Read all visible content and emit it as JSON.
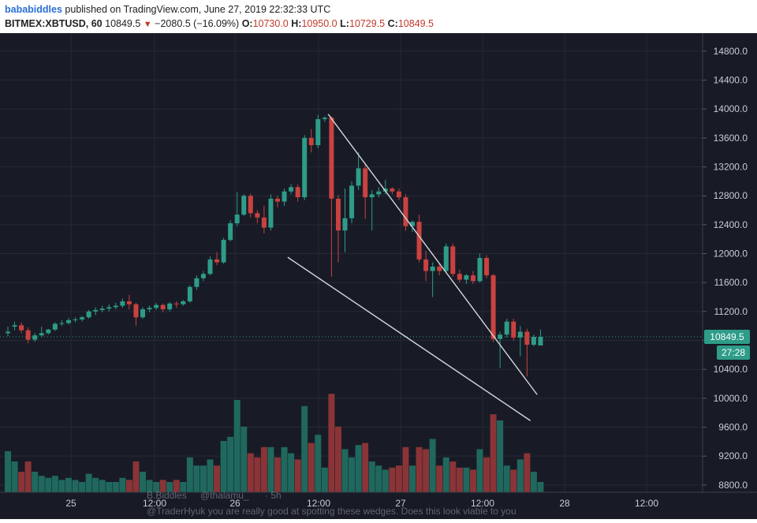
{
  "header": {
    "user": "bababiddles",
    "published": "published on TradingView.com, June 27, 2019 22:32:33 UTC",
    "symbol": "BITMEX:XBTUSD, 60",
    "last": "10849.5",
    "change": "−2080.5 (−16.09%)",
    "o_label": "O:",
    "o_value": "10730.0",
    "h_label": "H:",
    "h_value": "10950.0",
    "l_label": "L:",
    "l_value": "10729.5",
    "c_label": "C:",
    "c_value": "10849.5"
  },
  "colors": {
    "background": "#181b26",
    "up": "#2e9c88",
    "down": "#c9423f",
    "vol_up": "#20685e",
    "vol_down": "#8a3437",
    "grid": "#252a36",
    "axis_text": "#c8ccd6",
    "price_tag": "#2e9c88",
    "trendline": "#d4d6dc"
  },
  "price_tag": {
    "price": "10849.5",
    "countdown": "27:28"
  },
  "overlay_comment": {
    "author": "B.Biddles",
    "handle": "@thalamu_",
    "age": "· 5h",
    "text": "@TraderHyuk you are really good at spotting these wedges. Does this look viable to you"
  },
  "chart_data": {
    "type": "candlestick",
    "symbol": "BITMEX:XBTUSD",
    "interval": "60",
    "x_ticks": [
      "25",
      "12:00",
      "26",
      "12:00",
      "27",
      "12:00",
      "28",
      "12:00"
    ],
    "y_ticks": [
      8800,
      9200,
      9600,
      10000,
      10400,
      10800,
      11200,
      11600,
      12000,
      12400,
      12800,
      13200,
      13600,
      14000,
      14400,
      14800
    ],
    "ylim": [
      8700,
      15050
    ],
    "last_price": 10849.5,
    "candles": [
      [
        10900,
        10990,
        10920,
        10860,
        2
      ],
      [
        10990,
        11060,
        11010,
        10940,
        1.5
      ],
      [
        11010,
        11050,
        10940,
        10900,
        1
      ],
      [
        10940,
        10980,
        10810,
        10760,
        1.5
      ],
      [
        10810,
        10900,
        10870,
        10780,
        1
      ],
      [
        10870,
        10990,
        10900,
        10840,
        0.8
      ],
      [
        10900,
        10960,
        10950,
        10880,
        0.7
      ],
      [
        10950,
        11050,
        11030,
        10930,
        0.8
      ],
      [
        11030,
        11080,
        11040,
        11000,
        0.6
      ],
      [
        11040,
        11110,
        11080,
        11020,
        0.7
      ],
      [
        11080,
        11120,
        11090,
        11050,
        0.6
      ],
      [
        11090,
        11140,
        11120,
        11060,
        0.5
      ],
      [
        11120,
        11220,
        11200,
        11100,
        0.9
      ],
      [
        11200,
        11260,
        11220,
        11150,
        0.7
      ],
      [
        11220,
        11280,
        11240,
        11190,
        0.6
      ],
      [
        11240,
        11300,
        11260,
        11200,
        0.5
      ],
      [
        11260,
        11320,
        11280,
        11230,
        0.5
      ],
      [
        11280,
        11380,
        11340,
        11250,
        0.7
      ],
      [
        11340,
        11430,
        11300,
        11230,
        0.6
      ],
      [
        11300,
        11320,
        11120,
        11000,
        1.5
      ],
      [
        11120,
        11260,
        11230,
        11100,
        1
      ],
      [
        11230,
        11280,
        11250,
        11190,
        0.6
      ],
      [
        11250,
        11320,
        11290,
        11220,
        0.5
      ],
      [
        11290,
        11310,
        11230,
        11190,
        0.6
      ],
      [
        11230,
        11330,
        11310,
        11200,
        0.5
      ],
      [
        11310,
        11340,
        11300,
        11250,
        0.6
      ],
      [
        11300,
        11360,
        11340,
        11280,
        0.5
      ],
      [
        11340,
        11560,
        11540,
        11320,
        1.7
      ],
      [
        11540,
        11700,
        11660,
        11500,
        1.3
      ],
      [
        11660,
        11760,
        11720,
        11620,
        1.3
      ],
      [
        11720,
        11960,
        11920,
        11700,
        1.6
      ],
      [
        11920,
        12020,
        11880,
        11840,
        1.3
      ],
      [
        11880,
        12220,
        12190,
        11860,
        2.5
      ],
      [
        12190,
        12460,
        12420,
        12170,
        2.7
      ],
      [
        12420,
        12850,
        12540,
        12380,
        4.5
      ],
      [
        12540,
        12820,
        12800,
        12520,
        3.2
      ],
      [
        12800,
        12830,
        12560,
        12500,
        1.9
      ],
      [
        12560,
        12600,
        12500,
        12420,
        1.7
      ],
      [
        12500,
        12660,
        12360,
        12280,
        2.2
      ],
      [
        12360,
        12820,
        12760,
        12320,
        2.2
      ],
      [
        12760,
        12800,
        12720,
        12640,
        1.7
      ],
      [
        12720,
        12900,
        12860,
        12660,
        2.2
      ],
      [
        12860,
        12960,
        12920,
        12820,
        1.9
      ],
      [
        12920,
        12960,
        12780,
        12720,
        1.6
      ],
      [
        12780,
        13640,
        13600,
        12740,
        4.2
      ],
      [
        13600,
        13720,
        13500,
        13400,
        2.4
      ],
      [
        13500,
        13920,
        13860,
        13460,
        2.8
      ],
      [
        13860,
        13900,
        13880,
        13820,
        1.2
      ],
      [
        13880,
        13900,
        12760,
        11680,
        4.8
      ],
      [
        12760,
        12810,
        12320,
        11880,
        3.2
      ],
      [
        12320,
        12900,
        12490,
        12020,
        2.1
      ],
      [
        12490,
        13000,
        12940,
        12420,
        1.7
      ],
      [
        12940,
        13400,
        13180,
        12880,
        2.3
      ],
      [
        13180,
        13240,
        12780,
        12480,
        2.4
      ],
      [
        12780,
        12880,
        12820,
        12320,
        1.5
      ],
      [
        12820,
        12920,
        12860,
        12780,
        1.3
      ],
      [
        12860,
        13020,
        12900,
        12820,
        1.1
      ],
      [
        12900,
        12920,
        12860,
        12820,
        1.2
      ],
      [
        12860,
        12900,
        12780,
        12740,
        1.3
      ],
      [
        12780,
        12820,
        12380,
        12320,
        2.2
      ],
      [
        12380,
        12460,
        12440,
        12300,
        1.3
      ],
      [
        12440,
        12540,
        11920,
        11880,
        2.2
      ],
      [
        11920,
        12040,
        11760,
        11620,
        2.1
      ],
      [
        11760,
        11880,
        11820,
        11400,
        2.6
      ],
      [
        11820,
        11860,
        11760,
        11700,
        1.3
      ],
      [
        11760,
        12140,
        12100,
        11740,
        1.7
      ],
      [
        12100,
        12140,
        11720,
        11680,
        1.5
      ],
      [
        11720,
        11780,
        11640,
        11600,
        1.2
      ],
      [
        11640,
        11720,
        11700,
        11580,
        1.2
      ],
      [
        11700,
        11760,
        11620,
        11580,
        1.1
      ],
      [
        11620,
        12000,
        11940,
        11600,
        2.1
      ],
      [
        11940,
        11980,
        11700,
        11660,
        1.7
      ],
      [
        11700,
        11720,
        10820,
        10780,
        3.8
      ],
      [
        10820,
        10920,
        10880,
        10420,
        3.5
      ],
      [
        10880,
        11100,
        11060,
        10840,
        1.3
      ],
      [
        11060,
        11100,
        10840,
        10800,
        1.1
      ],
      [
        10840,
        11000,
        10920,
        10580,
        1.6
      ],
      [
        10920,
        10960,
        10740,
        10300,
        1.9
      ],
      [
        10740,
        10880,
        10850,
        10720,
        1
      ],
      [
        10730,
        10950,
        10850,
        10730,
        0.5
      ]
    ],
    "trendlines": [
      {
        "from": [
          47.5,
          13930
        ],
        "to": [
          78.5,
          10050
        ]
      },
      {
        "from": [
          41.5,
          11950
        ],
        "to": [
          77.5,
          9690
        ]
      }
    ]
  }
}
